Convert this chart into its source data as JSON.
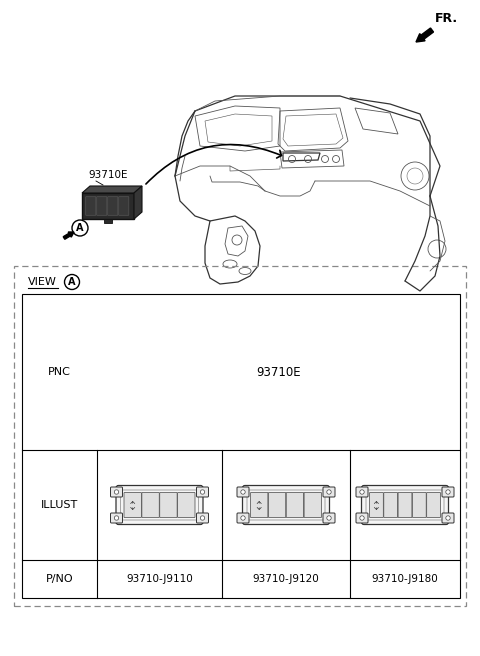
{
  "bg_color": "#ffffff",
  "fr_label": "FR.",
  "part_number_label": "93710E",
  "view_label": "VIEW",
  "view_circle_label": "A",
  "pnc_label": "PNC",
  "illust_label": "ILLUST",
  "pno_label": "P/NO",
  "part_numbers": [
    "93710-J9110",
    "93710-J9120",
    "93710-J9180"
  ],
  "component_label": "93710E",
  "callout_label": "A"
}
